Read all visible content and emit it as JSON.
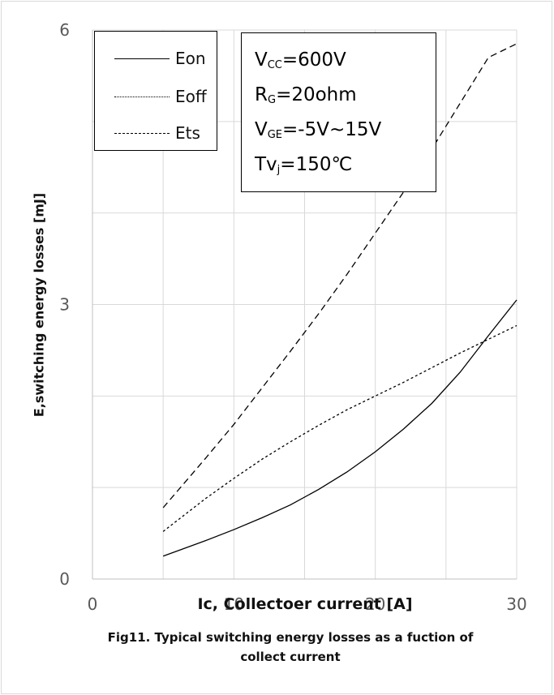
{
  "chart_data": {
    "type": "line",
    "xlabel": "Ic, Collectoer current [A]",
    "ylabel": "E,switching energy losses [mJ]",
    "caption_line1": "Fig11. Typical switching energy losses as a fuction of",
    "caption_line2": "collect current",
    "xlim": [
      0,
      30
    ],
    "ylim": [
      0,
      6
    ],
    "xticks": [
      "0",
      "10",
      "20",
      "30"
    ],
    "yticks": [
      "0",
      "3",
      "6"
    ],
    "grid": true,
    "legend_position": "top-left",
    "series": [
      {
        "name": "Eon",
        "style": "solid",
        "color": "#000000",
        "x": [
          5,
          8,
          10,
          12,
          14,
          16,
          18,
          20,
          22,
          24,
          26,
          28,
          30
        ],
        "y": [
          0.25,
          0.42,
          0.54,
          0.67,
          0.81,
          0.98,
          1.17,
          1.39,
          1.64,
          1.92,
          2.26,
          2.66,
          3.05
        ]
      },
      {
        "name": "Eoff",
        "style": "dotted",
        "color": "#000000",
        "x": [
          5,
          8,
          10,
          12,
          14,
          16,
          18,
          20,
          22,
          24,
          26,
          28,
          30
        ],
        "y": [
          0.52,
          0.88,
          1.1,
          1.31,
          1.5,
          1.68,
          1.85,
          2.0,
          2.15,
          2.31,
          2.47,
          2.62,
          2.77
        ]
      },
      {
        "name": "Ets",
        "style": "dashed",
        "color": "#000000",
        "x": [
          5,
          8,
          10,
          12,
          14,
          16,
          18,
          20,
          22,
          24,
          26,
          28,
          30
        ],
        "y": [
          0.78,
          1.32,
          1.69,
          2.09,
          2.49,
          2.9,
          3.33,
          3.78,
          4.23,
          4.7,
          5.2,
          5.7,
          5.85
        ]
      }
    ]
  },
  "params": {
    "vcc_main": "V",
    "vcc_sub": "CC",
    "vcc_value": "=600V",
    "rg_main": "R",
    "rg_sub": "G",
    "rg_value": "=20ohm",
    "vge_main": "V",
    "vge_sub": "GE",
    "vge_value": "=-5V~15V",
    "tvj_main": "Tv",
    "tvj_sub": "j",
    "tvj_value": "=150℃"
  },
  "colors": {
    "grid": "#d9d9d9",
    "axis": "#bfbfbf",
    "tick_text": "#595959",
    "line": "#000000"
  }
}
